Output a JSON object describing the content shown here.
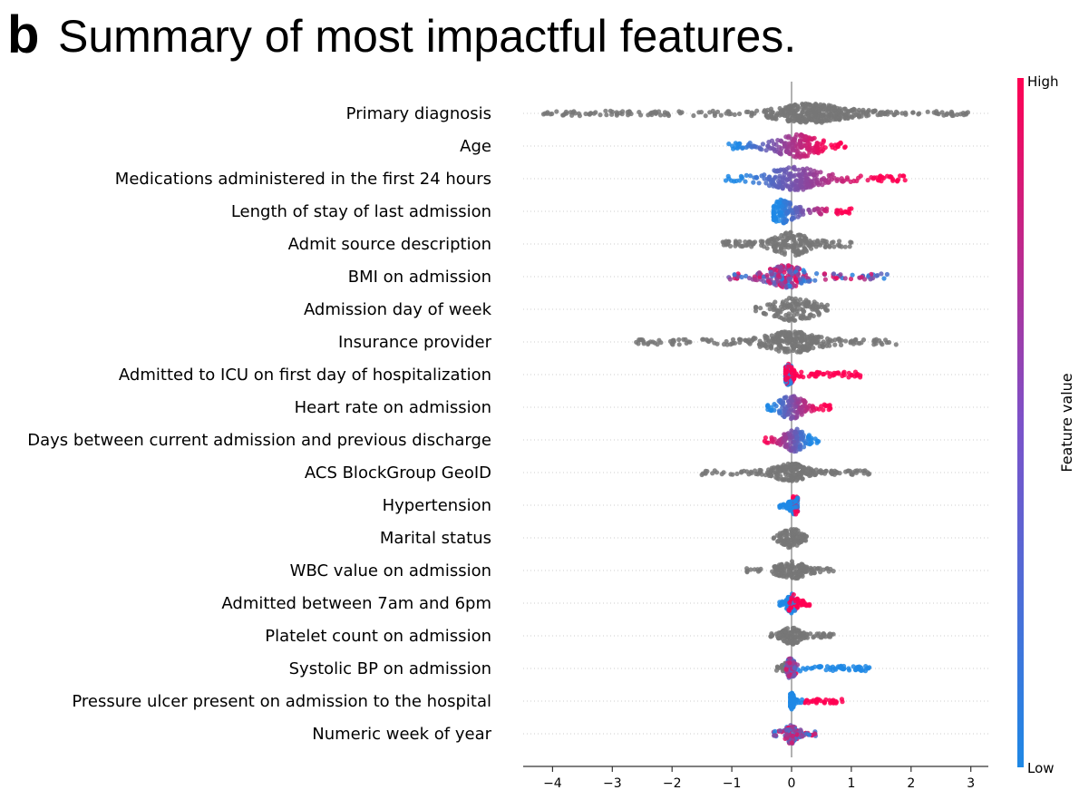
{
  "panel": {
    "letter": "b",
    "title": "Summary of most impactful features."
  },
  "colors": {
    "high": "#ff0052",
    "low": "#1e88e5",
    "neutral": "#777777",
    "axis": "#333333",
    "grid": "#cccccc"
  },
  "chart_data": {
    "type": "scatter",
    "subtype": "shap-beeswarm",
    "title": "Summary of most impactful features.",
    "xlabel": "",
    "ylabel": "",
    "xlim": [
      -4.5,
      3.3
    ],
    "xticks": [
      -4,
      -3,
      -2,
      -1,
      0,
      1,
      2,
      3
    ],
    "xtick_labels": [
      "−4",
      "−3",
      "−2",
      "−1",
      "0",
      "1",
      "2",
      "3"
    ],
    "colorbar": {
      "label": "Feature value",
      "high_label": "High",
      "low_label": "Low"
    },
    "features": [
      {
        "name": "Primary diagnosis",
        "min": -4.15,
        "max": 2.95,
        "peak": 0.3,
        "sigma": 0.4,
        "thick": 11,
        "color": "grey"
      },
      {
        "name": "Age",
        "min": -1.05,
        "max": 0.9,
        "peak": 0.1,
        "sigma": 0.25,
        "thick": 13,
        "color": "low-to-high"
      },
      {
        "name": "Medications administered in the first 24 hours",
        "min": -1.1,
        "max": 1.9,
        "peak": 0.05,
        "sigma": 0.3,
        "thick": 13,
        "color": "low-to-high"
      },
      {
        "name": "Length of stay of last admission",
        "min": -0.3,
        "max": 1.0,
        "peak": -0.15,
        "sigma": 0.15,
        "thick": 13,
        "color": "low-to-high"
      },
      {
        "name": "Admit source description",
        "min": -1.15,
        "max": 1.0,
        "peak": 0.0,
        "sigma": 0.2,
        "thick": 13,
        "color": "grey"
      },
      {
        "name": "BMI on admission",
        "min": -1.05,
        "max": 1.6,
        "peak": -0.1,
        "sigma": 0.2,
        "thick": 13,
        "color": "mixed"
      },
      {
        "name": "Admission day of week",
        "min": -0.6,
        "max": 0.6,
        "peak": 0.05,
        "sigma": 0.25,
        "thick": 13,
        "color": "grey"
      },
      {
        "name": "Insurance provider",
        "min": -2.6,
        "max": 1.75,
        "peak": 0.0,
        "sigma": 0.3,
        "thick": 12,
        "color": "grey"
      },
      {
        "name": "Admitted to ICU on first day of hospitalization",
        "min": -0.1,
        "max": 1.15,
        "peak": -0.05,
        "sigma": 0.05,
        "thick": 12,
        "color": "binary"
      },
      {
        "name": "Heart rate on admission",
        "min": -0.4,
        "max": 0.65,
        "peak": 0.0,
        "sigma": 0.15,
        "thick": 13,
        "color": "low-to-high"
      },
      {
        "name": "Days between current admission and previous discharge",
        "min": -0.45,
        "max": 0.45,
        "peak": 0.05,
        "sigma": 0.12,
        "thick": 13,
        "color": "high-to-low"
      },
      {
        "name": "ACS BlockGroup GeoID",
        "min": -1.5,
        "max": 1.3,
        "peak": 0.0,
        "sigma": 0.2,
        "thick": 10,
        "color": "grey"
      },
      {
        "name": "Hypertension",
        "min": -0.2,
        "max": 0.1,
        "peak": 0.05,
        "sigma": 0.05,
        "thick": 11,
        "color": "binary"
      },
      {
        "name": "Marital status",
        "min": -0.3,
        "max": 0.25,
        "peak": 0.0,
        "sigma": 0.1,
        "thick": 12,
        "color": "grey"
      },
      {
        "name": "WBC value on admission",
        "min": -0.75,
        "max": 0.7,
        "peak": 0.0,
        "sigma": 0.15,
        "thick": 10,
        "color": "grey"
      },
      {
        "name": "Admitted between 7am and 6pm",
        "min": -0.2,
        "max": 0.3,
        "peak": 0.0,
        "sigma": 0.06,
        "thick": 11,
        "color": "binary"
      },
      {
        "name": "Platelet count on admission",
        "min": -0.35,
        "max": 0.7,
        "peak": 0.0,
        "sigma": 0.1,
        "thick": 10,
        "color": "grey"
      },
      {
        "name": "Systolic BP on admission",
        "min": -0.25,
        "max": 1.3,
        "peak": -0.02,
        "sigma": 0.06,
        "thick": 11,
        "color": "bp"
      },
      {
        "name": "Pressure ulcer present on admission to the hospital",
        "min": -0.02,
        "max": 0.85,
        "peak": 0.0,
        "sigma": 0.03,
        "thick": 9,
        "color": "ulcer"
      },
      {
        "name": "Numeric week of year",
        "min": -0.3,
        "max": 0.4,
        "peak": 0.0,
        "sigma": 0.08,
        "thick": 11,
        "color": "mixed"
      }
    ]
  }
}
